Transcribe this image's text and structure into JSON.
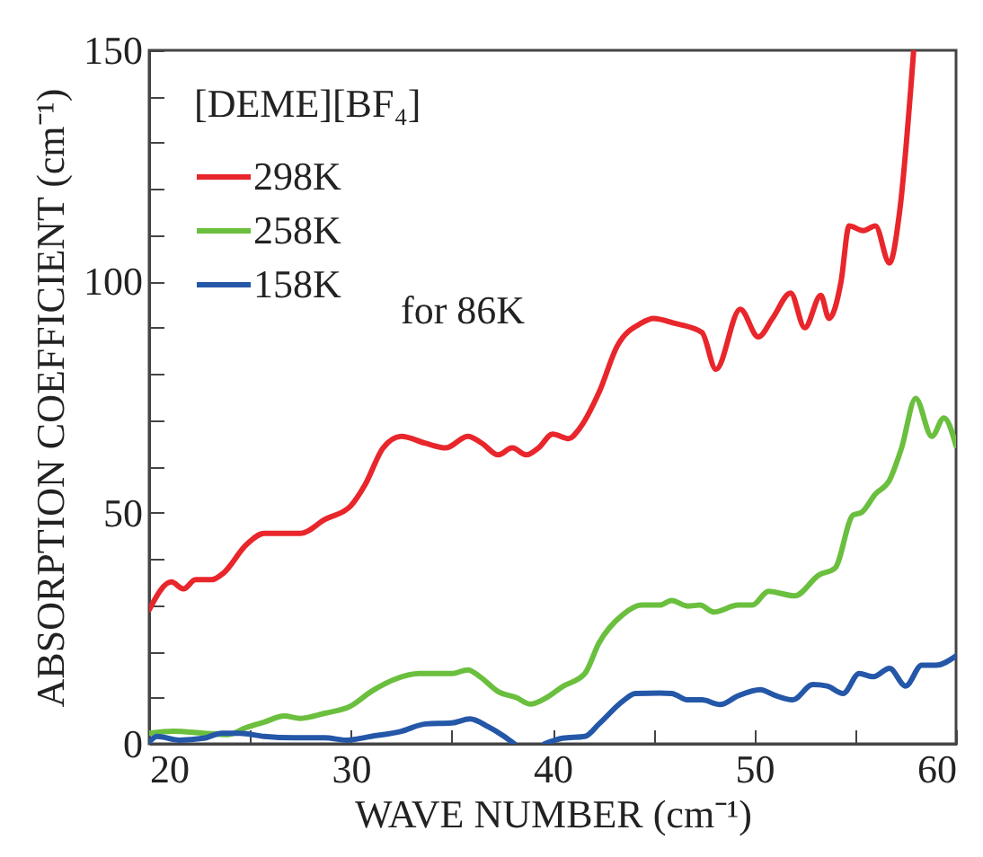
{
  "chart_data": {
    "type": "line",
    "xlabel": "WAVE NUMBER (cm⁻¹)",
    "ylabel": "ABSORPTION COEFFICIENT (cm⁻¹)",
    "legend_title": "[DEME][BF₄]",
    "legend": "top left",
    "annotations": [
      "for 86K"
    ],
    "xlim": [
      20,
      60
    ],
    "ylim": [
      0,
      150
    ],
    "xticks": [
      20,
      {
        "value": 25,
        "label": null
      },
      30,
      {
        "value": 35,
        "label": null
      },
      40,
      {
        "value": 45,
        "label": null
      },
      50,
      {
        "value": 55,
        "label": null
      },
      60
    ],
    "yticks": [
      0,
      {
        "value": 10,
        "label": null
      },
      {
        "value": 20,
        "label": null
      },
      {
        "value": 30,
        "label": null
      },
      {
        "value": 40,
        "label": null
      },
      50,
      {
        "value": 60,
        "label": null
      },
      {
        "value": 70,
        "label": null
      },
      {
        "value": 80,
        "label": null
      },
      {
        "value": 90,
        "label": null
      },
      100,
      {
        "value": 110,
        "label": null
      },
      {
        "value": 120,
        "label": null
      },
      {
        "value": 130,
        "label": null
      },
      {
        "value": 140,
        "label": null
      },
      150
    ],
    "grid": false,
    "marker": "none",
    "line_style": "solid",
    "series": [
      {
        "name": "298K",
        "color": "#e8262b",
        "x": [
          20,
          21.1,
          21.7,
          22.3,
          23.1,
          23.7,
          24.8,
          25.7,
          26.6,
          27.5,
          28.7,
          30,
          30.7,
          31.6,
          32.5,
          33.7,
          34.7,
          35.8,
          36.5,
          37.3,
          38,
          38.7,
          39.3,
          40,
          40.8,
          41.3,
          42.3,
          43.2,
          44.4,
          45,
          46,
          47.4,
          48.1,
          49.3,
          50.2,
          50.9,
          51.8,
          52.5,
          53.3,
          53.7,
          54.3,
          54.7,
          55.4,
          56,
          56.7,
          57.2,
          57.9
        ],
        "values": [
          29,
          35,
          33.5,
          35.5,
          35.5,
          37,
          43,
          45.5,
          45.5,
          45.5,
          48.5,
          51.5,
          56,
          64,
          66.5,
          65,
          64,
          66.5,
          65,
          62.5,
          64,
          62.5,
          64,
          67,
          66,
          68,
          76,
          86,
          91,
          92,
          91,
          89,
          81,
          94,
          88,
          92,
          97.5,
          90,
          97,
          92,
          100,
          112,
          111,
          112,
          104,
          115,
          150
        ]
      },
      {
        "name": "258K",
        "color": "#6bbf3e",
        "x": [
          20,
          21.2,
          22.7,
          23.9,
          24.8,
          25.7,
          26.7,
          27.5,
          28.7,
          30,
          31,
          32.2,
          33.4,
          35,
          35.8,
          36.4,
          37.3,
          38.2,
          38.9,
          39.7,
          40.5,
          41.6,
          42.3,
          43.5,
          44.4,
          45.3,
          45.9,
          46.7,
          47.3,
          48,
          49.2,
          49.9,
          50.7,
          52,
          53.2,
          54,
          54.9,
          55.3,
          56,
          56.7,
          57.3,
          58,
          58.8,
          59.4,
          60
        ],
        "values": [
          2.3,
          2.7,
          2.3,
          2,
          3.5,
          4.7,
          6,
          5.5,
          6.6,
          8.2,
          11.3,
          14,
          15.2,
          15.2,
          16,
          14.5,
          11.3,
          10,
          8.6,
          10,
          12.4,
          15.2,
          21.8,
          28,
          30,
          30,
          31,
          29.8,
          30,
          28.5,
          30,
          30,
          33,
          32,
          36.5,
          38,
          49.5,
          50,
          54,
          57,
          64,
          74.7,
          66.5,
          70.5,
          64.5
        ]
      },
      {
        "name": "158K",
        "color": "#2457a8",
        "x": [
          20,
          20.4,
          21.5,
          22.7,
          23.6,
          24.5,
          25.7,
          27.2,
          28.7,
          29.8,
          31,
          32.5,
          33.7,
          35,
          35.9,
          36.8,
          37.6,
          38.1,
          38.9,
          39.6,
          40.5,
          41.6,
          42.3,
          43.5,
          44.1,
          45.3,
          45.9,
          46.7,
          47.4,
          48.3,
          49.2,
          50.3,
          51,
          51.9,
          52.9,
          53.6,
          54.4,
          55.2,
          55.9,
          56.7,
          57.5,
          58.3,
          59,
          60
        ],
        "values": [
          0.4,
          1.6,
          0.8,
          1.2,
          2.3,
          2.3,
          1.6,
          1.3,
          1.3,
          0.8,
          1.6,
          2.7,
          4.3,
          4.5,
          5.4,
          3.7,
          1.6,
          0,
          null,
          0,
          1.2,
          1.6,
          4.3,
          9.3,
          10.9,
          11,
          10.9,
          9.5,
          9.5,
          8.5,
          10.4,
          11.7,
          10.5,
          9.5,
          12.8,
          12.5,
          10.9,
          15.2,
          14.5,
          16.3,
          12.5,
          17,
          17,
          19
        ]
      }
    ]
  }
}
